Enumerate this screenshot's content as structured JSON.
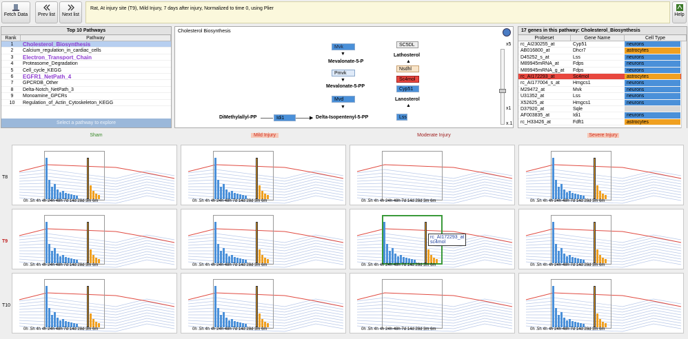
{
  "toolbar": {
    "fetch": "Fetch Data",
    "prev": "Prev list",
    "next": "Next list",
    "help": "Help"
  },
  "title": "Rat, At injury site (T9), Mild Injury, 7 days after injury, Normalized to time 0, using Plier",
  "top10": {
    "header": "Top 10 Pathways",
    "col_rank": "Rank",
    "col_path": "Pathway",
    "rows": [
      [
        "1",
        "Cholesterol_Biosynthesis"
      ],
      [
        "2",
        "Calcium_regulation_in_cardiac_cells"
      ],
      [
        "3",
        "Electron_Transport_Chain"
      ],
      [
        "4",
        "Proteasome_Degradation"
      ],
      [
        "5",
        "Cell_cycle_KEGG"
      ],
      [
        "6",
        "EGFR1_NetPath_4"
      ],
      [
        "7",
        "GPCRDB_Other"
      ],
      [
        "8",
        "Delta-Notch_NetPath_3"
      ],
      [
        "9",
        "Monoamine_GPCRs"
      ],
      [
        "10",
        "Regulation_of_Actin_Cytoskeleton_KEGG"
      ]
    ],
    "footer": "Select a pathway to explore"
  },
  "diagram": {
    "title": "Cholesterol Biosynthesis",
    "genes": {
      "mvk": "Mvk",
      "pmvk": "Pmvk",
      "mvd": "Mvd",
      "idi1": "Idi1",
      "sc5dl": "SC5DL",
      "nsdhl": "Nsdhl",
      "sc4mol": "Sc4mol",
      "cyp51": "Cyp51",
      "lss": "Lss"
    },
    "metabolites": {
      "m1": "Mevalonate-5-P",
      "m2": "Mevalonate-5-PP",
      "m3": "Delta-Isopentenyl-5-PP",
      "m4": "DiMethylallyl-PP",
      "m5": "Lathosterol",
      "m6": "Lanosterol"
    },
    "zoom": {
      "top": "x5",
      "mid": "x1",
      "bot": "x.1"
    }
  },
  "genes": {
    "header": "17 genes in this pathway: Cholesterol_Biosynthesis",
    "col1": "Probeset",
    "col2": "Gene Name",
    "col3": "Cell Type",
    "rows": [
      [
        "rc_AI230255_at",
        "Cyp51",
        "neurons"
      ],
      [
        "AB016800_at",
        "Dhcr7",
        "astrocytes"
      ],
      [
        "D45252_s_at",
        "Lss",
        "neurons"
      ],
      [
        "M89945mRNA_at",
        "Fdps",
        "neurons"
      ],
      [
        "M89945mRNA_g_at",
        "Fdps",
        "neurons"
      ],
      [
        "rc_AI172293_at",
        "Sc4mol",
        "astrocytes"
      ],
      [
        "rc_AI177004_s_at",
        "Hmgcs1",
        "neurons"
      ],
      [
        "M29472_at",
        "Mvk",
        "neurons"
      ],
      [
        "U31352_at",
        "Lss",
        "neurons"
      ],
      [
        "X52625_at",
        "Hmgcs1",
        "neurons"
      ],
      [
        "D37920_at",
        "Sqle",
        ""
      ],
      [
        "AF003835_at",
        "Idi1",
        "neurons"
      ],
      [
        "rc_H33426_at",
        "Fdft1",
        "astrocytes"
      ]
    ]
  },
  "grid": {
    "cols": [
      "Sham",
      "Mild Injury",
      "Moderate Injury",
      "Severe Injury"
    ],
    "rows": [
      "T8",
      "T9",
      "T10"
    ],
    "ticks": [
      "0h",
      ".5h",
      "4h",
      "4h",
      "24h",
      "48h",
      "7d",
      "14d",
      "28d",
      "3m",
      "6m"
    ],
    "sel_day": "7d",
    "tooltip": {
      "probe": "rc_AI172293_at",
      "gene": "sc4mol"
    }
  },
  "colors": {
    "neurons": "#4a90d9",
    "astrocytes": "#f0a020",
    "sel_red": "#e8473f",
    "bar_blue": "#4a90d9",
    "bar_orange": "#f0a020"
  }
}
